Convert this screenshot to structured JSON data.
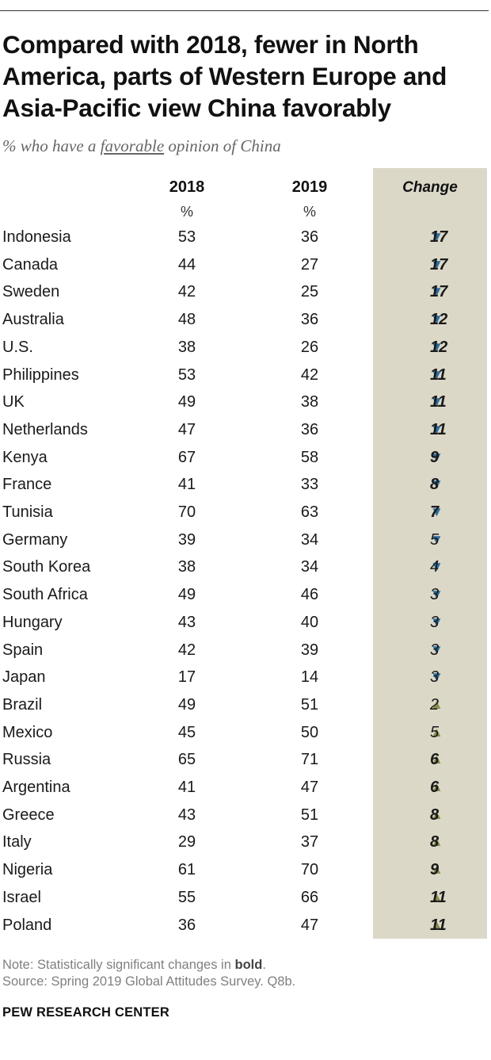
{
  "title": "Compared with 2018, fewer in North America, parts of Western Europe and Asia-Pacific view China favorably",
  "subtitle": {
    "before": "% who have a ",
    "underlined": "favorable",
    "after": " opinion of China"
  },
  "columns": {
    "y2018": "2018",
    "y2019": "2019",
    "change": "Change",
    "unit": "%"
  },
  "colors": {
    "down_arrow": "#2a6d9e",
    "up_arrow": "#8a8f4f",
    "change_column_bg": "#dcd8c8"
  },
  "chart_data": {
    "type": "table",
    "title": "Compared with 2018, fewer in North America, parts of Western Europe and Asia-Pacific view China favorably",
    "subtitle": "% who have a favorable opinion of China",
    "columns": [
      "2018",
      "2019",
      "Change"
    ],
    "rows": [
      {
        "country": "Indonesia",
        "y2018": "53",
        "y2019": "36",
        "direction": "down",
        "change": "17",
        "significant": true
      },
      {
        "country": "Canada",
        "y2018": "44",
        "y2019": "27",
        "direction": "down",
        "change": "17",
        "significant": true
      },
      {
        "country": "Sweden",
        "y2018": "42",
        "y2019": "25",
        "direction": "down",
        "change": "17",
        "significant": true
      },
      {
        "country": "Australia",
        "y2018": "48",
        "y2019": "36",
        "direction": "down",
        "change": "12",
        "significant": true
      },
      {
        "country": "U.S.",
        "y2018": "38",
        "y2019": "26",
        "direction": "down",
        "change": "12",
        "significant": true
      },
      {
        "country": "Philippines",
        "y2018": "53",
        "y2019": "42",
        "direction": "down",
        "change": "11",
        "significant": true
      },
      {
        "country": "UK",
        "y2018": "49",
        "y2019": "38",
        "direction": "down",
        "change": "11",
        "significant": true
      },
      {
        "country": "Netherlands",
        "y2018": "47",
        "y2019": "36",
        "direction": "down",
        "change": "11",
        "significant": true
      },
      {
        "country": "Kenya",
        "y2018": "67",
        "y2019": "58",
        "direction": "down",
        "change": "9",
        "significant": true
      },
      {
        "country": "France",
        "y2018": "41",
        "y2019": "33",
        "direction": "down",
        "change": "8",
        "significant": true
      },
      {
        "country": "Tunisia",
        "y2018": "70",
        "y2019": "63",
        "direction": "down",
        "change": "7",
        "significant": true
      },
      {
        "country": "Germany",
        "y2018": "39",
        "y2019": "34",
        "direction": "down",
        "change": "5",
        "significant": false
      },
      {
        "country": "South Korea",
        "y2018": "38",
        "y2019": "34",
        "direction": "down",
        "change": "4",
        "significant": false
      },
      {
        "country": "South Africa",
        "y2018": "49",
        "y2019": "46",
        "direction": "down",
        "change": "3",
        "significant": false
      },
      {
        "country": "Hungary",
        "y2018": "43",
        "y2019": "40",
        "direction": "down",
        "change": "3",
        "significant": false
      },
      {
        "country": "Spain",
        "y2018": "42",
        "y2019": "39",
        "direction": "down",
        "change": "3",
        "significant": false
      },
      {
        "country": "Japan",
        "y2018": "17",
        "y2019": "14",
        "direction": "down",
        "change": "3",
        "significant": false
      },
      {
        "country": "Brazil",
        "y2018": "49",
        "y2019": "51",
        "direction": "up",
        "change": "2",
        "significant": false
      },
      {
        "country": "Mexico",
        "y2018": "45",
        "y2019": "50",
        "direction": "up",
        "change": "5",
        "significant": false
      },
      {
        "country": "Russia",
        "y2018": "65",
        "y2019": "71",
        "direction": "up",
        "change": "6",
        "significant": true
      },
      {
        "country": "Argentina",
        "y2018": "41",
        "y2019": "47",
        "direction": "up",
        "change": "6",
        "significant": true
      },
      {
        "country": "Greece",
        "y2018": "43",
        "y2019": "51",
        "direction": "up",
        "change": "8",
        "significant": true
      },
      {
        "country": "Italy",
        "y2018": "29",
        "y2019": "37",
        "direction": "up",
        "change": "8",
        "significant": true
      },
      {
        "country": "Nigeria",
        "y2018": "61",
        "y2019": "70",
        "direction": "up",
        "change": "9",
        "significant": true
      },
      {
        "country": "Israel",
        "y2018": "55",
        "y2019": "66",
        "direction": "up",
        "change": "11",
        "significant": true
      },
      {
        "country": "Poland",
        "y2018": "36",
        "y2019": "47",
        "direction": "up",
        "change": "11",
        "significant": true
      }
    ]
  },
  "note": {
    "prefix": "Note: Statistically significant changes in ",
    "bold": "bold",
    "suffix": "."
  },
  "source": "Source: Spring 2019 Global Attitudes Survey. Q8b.",
  "brand": "PEW RESEARCH CENTER"
}
